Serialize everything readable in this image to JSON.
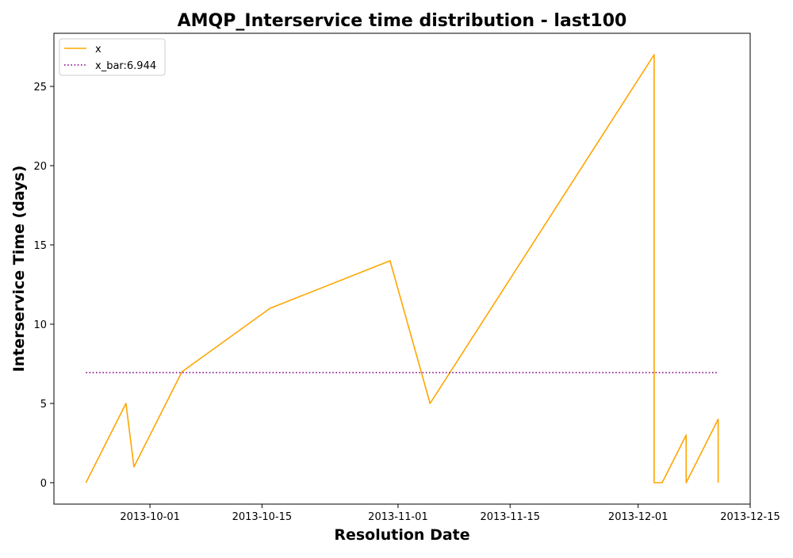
{
  "chart_data": {
    "type": "line",
    "title": "AMQP_Interservice time distribution - last100",
    "xlabel": "Resolution Date",
    "ylabel": "Interservice Time (days)",
    "x_is_date": true,
    "xlim": [
      "2013-09-19",
      "2013-12-15"
    ],
    "ylim": [
      -1.35,
      28.35
    ],
    "x_ticks": [
      "2013-10-01",
      "2013-10-15",
      "2013-11-01",
      "2013-11-15",
      "2013-12-01",
      "2013-12-15"
    ],
    "y_ticks": [
      0,
      5,
      10,
      15,
      20,
      25
    ],
    "grid": false,
    "legend_position": "top-left",
    "series": [
      {
        "name": "x",
        "color": "#ffa500",
        "style": "solid",
        "x": [
          "2013-09-23",
          "2013-09-28",
          "2013-09-29",
          "2013-10-05",
          "2013-10-16",
          "2013-10-31",
          "2013-11-05",
          "2013-12-03",
          "2013-12-03",
          "2013-12-04",
          "2013-12-07",
          "2013-12-07",
          "2013-12-11",
          "2013-12-11"
        ],
        "y": [
          0,
          5,
          1,
          7,
          11,
          14,
          5,
          27,
          0,
          0,
          3,
          0,
          4,
          0
        ]
      },
      {
        "name": "x_bar:6.944",
        "color": "#800080",
        "style": "dotted",
        "x": [
          "2013-09-23",
          "2013-12-11"
        ],
        "y": [
          6.944,
          6.944
        ]
      }
    ]
  }
}
